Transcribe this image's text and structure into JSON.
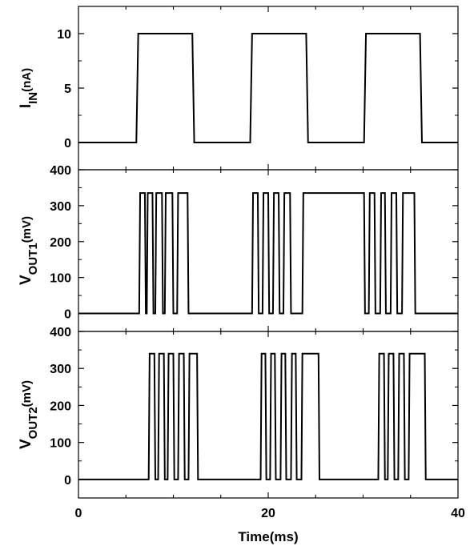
{
  "chart_data": {
    "type": "line",
    "x_axis": {
      "label": "Time(ms)",
      "range": [
        0,
        40
      ],
      "ticks": [
        0,
        20,
        40
      ]
    },
    "panels": [
      {
        "id": "iin",
        "ylabel": {
          "main": "I",
          "sub": "IN",
          "unit": "(nA)"
        },
        "yrange": [
          -2.5,
          12.5
        ],
        "yticks": [
          0,
          5,
          10
        ],
        "series": [
          {
            "x": [
              0,
              6.1,
              6.3,
              12.0,
              12.2,
              18.1,
              18.3,
              24.0,
              24.2,
              30.1,
              30.3,
              36.0,
              36.2,
              40
            ],
            "y": [
              0,
              0,
              10,
              10,
              0,
              0,
              10,
              10,
              0,
              0,
              10,
              10,
              0,
              0
            ]
          }
        ]
      },
      {
        "id": "vout1",
        "ylabel": {
          "main": "V",
          "sub": "OUT1",
          "unit": "(mV)"
        },
        "yrange": [
          -50,
          400
        ],
        "yticks": [
          0,
          100,
          200,
          300,
          400
        ],
        "series": [
          {
            "x": [
              0,
              6.4,
              6.5,
              7.0,
              7.1,
              7.2,
              7.3,
              7.8,
              7.9,
              8.1,
              8.2,
              8.8,
              8.9,
              9.1,
              9.2,
              9.9,
              10.0,
              10.4,
              10.5,
              11.5,
              11.6,
              18.3,
              18.4,
              18.9,
              19.0,
              19.4,
              19.5,
              20.0,
              20.1,
              20.5,
              20.6,
              21.1,
              21.2,
              21.6,
              21.7,
              22.3,
              22.4,
              23.6,
              23.7,
              30.1,
              30.2,
              30.6,
              30.7,
              31.2,
              31.3,
              31.8,
              31.9,
              32.3,
              32.4,
              32.9,
              33.0,
              33.5,
              33.6,
              34.1,
              34.2,
              35.4,
              35.5,
              40
            ],
            "y": [
              0,
              0,
              335,
              335,
              0,
              0,
              335,
              335,
              0,
              0,
              335,
              335,
              0,
              0,
              335,
              335,
              0,
              0,
              335,
              335,
              0,
              0,
              335,
              335,
              0,
              0,
              335,
              335,
              0,
              0,
              335,
              335,
              0,
              0,
              335,
              335,
              0,
              0,
              335,
              335,
              0,
              0,
              335,
              335,
              0,
              0,
              335,
              335,
              0,
              0,
              335,
              335,
              0,
              0,
              335,
              335,
              0,
              0
            ]
          }
        ]
      },
      {
        "id": "vout2",
        "ylabel": {
          "main": "V",
          "sub": "OUT2",
          "unit": "(mV)"
        },
        "yrange": [
          -50,
          400
        ],
        "yticks": [
          0,
          100,
          200,
          300,
          400
        ],
        "series": [
          {
            "x": [
              0,
              7.4,
              7.5,
              8.0,
              8.1,
              8.4,
              8.5,
              9.0,
              9.1,
              9.4,
              9.5,
              10.0,
              10.1,
              10.5,
              10.6,
              11.1,
              11.2,
              11.6,
              11.7,
              12.5,
              12.6,
              19.2,
              19.3,
              19.7,
              19.8,
              20.2,
              20.3,
              20.7,
              20.8,
              21.3,
              21.4,
              21.8,
              21.9,
              22.4,
              22.5,
              22.9,
              23.0,
              23.5,
              23.6,
              25.3,
              25.4,
              31.6,
              31.7,
              32.2,
              32.3,
              32.6,
              32.7,
              33.2,
              33.3,
              33.7,
              33.8,
              34.3,
              34.4,
              34.8,
              34.9,
              36.5,
              36.6,
              40
            ],
            "y": [
              0,
              0,
              340,
              340,
              0,
              0,
              340,
              340,
              0,
              0,
              340,
              340,
              0,
              0,
              340,
              340,
              0,
              0,
              340,
              340,
              0,
              0,
              340,
              340,
              0,
              0,
              340,
              340,
              0,
              0,
              340,
              340,
              0,
              0,
              340,
              340,
              0,
              0,
              340,
              340,
              0,
              0,
              340,
              340,
              0,
              0,
              340,
              340,
              0,
              0,
              340,
              340,
              0,
              0,
              340,
              340,
              0,
              0
            ]
          }
        ]
      }
    ]
  }
}
